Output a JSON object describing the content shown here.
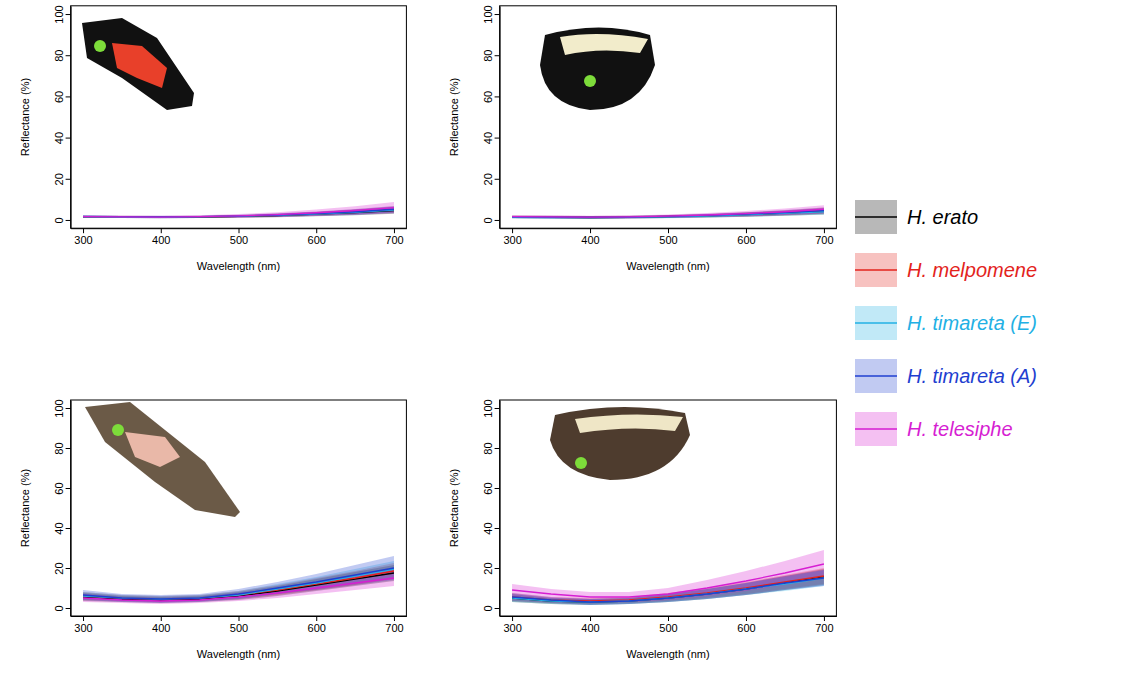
{
  "chart_data": {
    "type": "line",
    "x_label": "Wavelength (nm)",
    "y_label": "Reflectance (%)",
    "x": [
      300,
      350,
      400,
      450,
      500,
      550,
      600,
      650,
      700
    ],
    "xlim": [
      284,
      716
    ],
    "ylim": [
      -4,
      104
    ],
    "xticks": [
      300,
      400,
      500,
      600,
      700
    ],
    "yticks": [
      0,
      20,
      40,
      60,
      80,
      100
    ],
    "legend": "right",
    "series": [
      {
        "name": "H. erato",
        "color": "#000000"
      },
      {
        "name": "H. melpomene",
        "color": "#e3231c"
      },
      {
        "name": "H. timareta (E)",
        "color": "#22b0e4"
      },
      {
        "name": "H. timareta (A)",
        "color": "#1f3fd0"
      },
      {
        "name": "H. telesiphe",
        "color": "#d61ed2"
      }
    ],
    "panels": [
      {
        "series": [
          {
            "values": [
              1.5,
              1.4,
              1.3,
              1.4,
              1.7,
              2.1,
              2.8,
              3.6,
              4.6
            ],
            "error": [
              0.5,
              0.5,
              0.5,
              0.5,
              0.6,
              0.8,
              1,
              1.3,
              1.6
            ]
          },
          {
            "values": [
              1.6,
              1.5,
              1.4,
              1.5,
              1.8,
              2.3,
              3,
              3.9,
              5
            ],
            "error": [
              0.5,
              0.5,
              0.5,
              0.5,
              0.6,
              0.8,
              1,
              1.3,
              1.6
            ]
          },
          {
            "values": [
              1.5,
              1.4,
              1.3,
              1.5,
              1.8,
              2.2,
              2.9,
              3.7,
              4.8
            ],
            "error": [
              0.5,
              0.5,
              0.5,
              0.5,
              0.6,
              0.8,
              1,
              1.3,
              1.6
            ]
          },
          {
            "values": [
              1.7,
              1.6,
              1.5,
              1.6,
              1.9,
              2.4,
              3.1,
              4,
              5.2
            ],
            "error": [
              0.5,
              0.5,
              0.5,
              0.5,
              0.6,
              0.8,
              1,
              1.3,
              1.6
            ]
          },
          {
            "values": [
              1.6,
              1.5,
              1.4,
              1.6,
              2,
              2.6,
              3.5,
              4.6,
              6
            ],
            "error": [
              0.6,
              0.6,
              0.6,
              0.7,
              0.9,
              1.2,
              1.6,
              2.1,
              2.7
            ]
          }
        ]
      },
      {
        "series": [
          {
            "values": [
              1.4,
              1.3,
              1.2,
              1.3,
              1.6,
              2,
              2.6,
              3.3,
              4.2
            ],
            "error": [
              0.6,
              0.6,
              0.6,
              0.6,
              0.7,
              0.8,
              1,
              1.2,
              1.5
            ]
          },
          {
            "values": [
              1.5,
              1.4,
              1.3,
              1.4,
              1.7,
              2.1,
              2.7,
              3.5,
              4.5
            ],
            "error": [
              0.6,
              0.6,
              0.6,
              0.6,
              0.7,
              0.8,
              1,
              1.2,
              1.5
            ]
          },
          {
            "values": [
              1.3,
              1.2,
              1.2,
              1.3,
              1.5,
              1.9,
              2.5,
              3.2,
              4
            ],
            "error": [
              0.6,
              0.6,
              0.6,
              0.6,
              0.7,
              0.8,
              1,
              1.2,
              1.5
            ]
          },
          {
            "values": [
              1.5,
              1.4,
              1.3,
              1.4,
              1.7,
              2.2,
              2.8,
              3.6,
              4.6
            ],
            "error": [
              0.6,
              0.6,
              0.6,
              0.6,
              0.7,
              0.8,
              1,
              1.2,
              1.5
            ]
          },
          {
            "values": [
              1.6,
              1.5,
              1.4,
              1.5,
              1.9,
              2.4,
              3.1,
              4,
              5.2
            ],
            "error": [
              0.7,
              0.7,
              0.7,
              0.7,
              0.8,
              1,
              1.3,
              1.6,
              2
            ]
          }
        ]
      },
      {
        "series": [
          {
            "values": [
              5.5,
              4.5,
              4,
              4.5,
              6,
              8.5,
              11.5,
              14.5,
              17.5
            ],
            "error": [
              2,
              1.5,
              1.5,
              1.5,
              2,
              2.5,
              3,
              3.5,
              4
            ]
          },
          {
            "values": [
              6,
              5,
              4.5,
              5,
              6.5,
              9,
              12,
              15,
              18.5
            ],
            "error": [
              2,
              1.5,
              1.5,
              1.5,
              2,
              2.5,
              3,
              3.5,
              4
            ]
          },
          {
            "values": [
              6,
              5,
              4.5,
              5,
              6.5,
              9.5,
              12.5,
              16,
              19.5
            ],
            "error": [
              2,
              1.5,
              1.5,
              1.5,
              2,
              2.5,
              3,
              3.5,
              4
            ]
          },
          {
            "values": [
              6.5,
              5,
              4.5,
              5,
              7,
              10,
              13,
              16.5,
              20
            ],
            "error": [
              2.5,
              2,
              2,
              2,
              2.5,
              3,
              4,
              5,
              6
            ]
          },
          {
            "values": [
              5,
              4,
              3.5,
              4,
              5.5,
              7.5,
              10,
              12.5,
              15
            ],
            "error": [
              2,
              1.5,
              1.5,
              1.5,
              2,
              2.5,
              3,
              3.5,
              4
            ]
          }
        ]
      },
      {
        "series": [
          {
            "values": [
              5,
              3.5,
              3,
              3.5,
              5,
              7,
              9.5,
              12.5,
              15.5
            ],
            "error": [
              2,
              1.5,
              1.5,
              1.5,
              2,
              2.5,
              3,
              3.5,
              4
            ]
          },
          {
            "values": [
              5.5,
              4,
              3.5,
              4,
              5.5,
              7.5,
              10,
              13,
              16
            ],
            "error": [
              2,
              1.5,
              1.5,
              1.5,
              2,
              2.5,
              3,
              3.5,
              4
            ]
          },
          {
            "values": [
              5,
              3.5,
              3,
              3.5,
              5,
              7,
              9.5,
              12,
              15
            ],
            "error": [
              2,
              1.5,
              1.5,
              1.5,
              2,
              2.5,
              3,
              3.5,
              4
            ]
          },
          {
            "values": [
              5.5,
              4,
              3,
              3.5,
              5,
              7,
              9.5,
              12.5,
              15
            ],
            "error": [
              2,
              1.5,
              1.5,
              1.5,
              2,
              2.5,
              3,
              3.5,
              4
            ]
          },
          {
            "values": [
              9,
              7,
              5.5,
              5.5,
              7,
              10,
              13.5,
              17.5,
              22
            ],
            "error": [
              3,
              2.5,
              2.5,
              2.5,
              3,
              4,
              5,
              6,
              7
            ]
          }
        ]
      }
    ]
  }
}
